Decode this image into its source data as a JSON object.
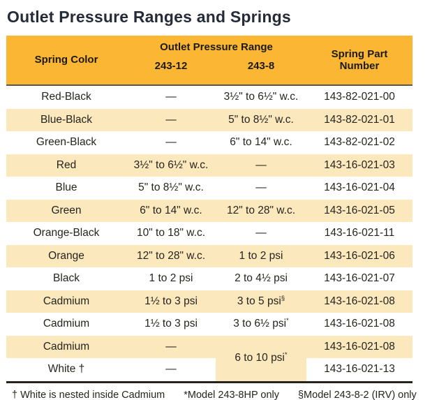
{
  "title": "Outlet Pressure Ranges and Springs",
  "colors": {
    "header_bg": "#FBB733",
    "row_alt_bg": "#FBE8BD",
    "title_text": "#262B39",
    "body_text": "#26241F"
  },
  "table": {
    "header": {
      "spring_color": "Spring Color",
      "outlet_pressure_range": "Outlet Pressure Range",
      "model_243_12": "243-12",
      "model_243_8": "243-8",
      "spring_part_number": "Spring Part Number"
    },
    "rows": [
      {
        "color": "Red-Black",
        "v12": "—",
        "v8": "3½\" to 6½\" w.c.",
        "part": "143-82-021-00"
      },
      {
        "color": "Blue-Black",
        "v12": "—",
        "v8": "5\" to 8½\" w.c.",
        "part": "143-82-021-01"
      },
      {
        "color": "Green-Black",
        "v12": "—",
        "v8": "6\" to 14\" w.c.",
        "part": "143-82-021-02"
      },
      {
        "color": "Red",
        "v12": "3½\" to 6½\" w.c.",
        "v8": "—",
        "part": "143-16-021-03"
      },
      {
        "color": "Blue",
        "v12": "5\" to 8½\" w.c.",
        "v8": "—",
        "part": "143-16-021-04"
      },
      {
        "color": "Green",
        "v12": "6\" to 14\" w.c.",
        "v8": "12\" to 28\" w.c.",
        "part": "143-16-021-05"
      },
      {
        "color": "Orange-Black",
        "v12": "10\" to 18\" w.c.",
        "v8": "—",
        "part": "143-16-021-11"
      },
      {
        "color": "Orange",
        "v12": "12\" to 28\" w.c.",
        "v8": "1 to 2 psi",
        "part": "143-16-021-06"
      },
      {
        "color": "Black",
        "v12": "1 to 2 psi",
        "v8": "2 to 4½ psi",
        "part": "143-16-021-07"
      },
      {
        "color": "Cadmium",
        "v12": "1½ to 3 psi",
        "v8": "3 to 5 psi",
        "v8_sup": "§",
        "part": "143-16-021-08"
      },
      {
        "color": "Cadmium",
        "v12": "1½ to 3 psi",
        "v8": "3 to 6½ psi",
        "v8_sup": "*",
        "part": "143-16-021-08"
      },
      {
        "color": "Cadmium",
        "v12": "—",
        "part": "143-16-021-08"
      },
      {
        "color": "White †",
        "v12": "—",
        "part": "143-16-021-13"
      }
    ],
    "merged_cell": {
      "value": "6 to 10 psi",
      "sup": "*"
    }
  },
  "footnotes": {
    "white_nested": "† White is nested inside Cadmium",
    "model_243_8hp": "*Model 243-8HP only",
    "model_243_8_2": "§Model 243-8-2 (IRV) only"
  }
}
